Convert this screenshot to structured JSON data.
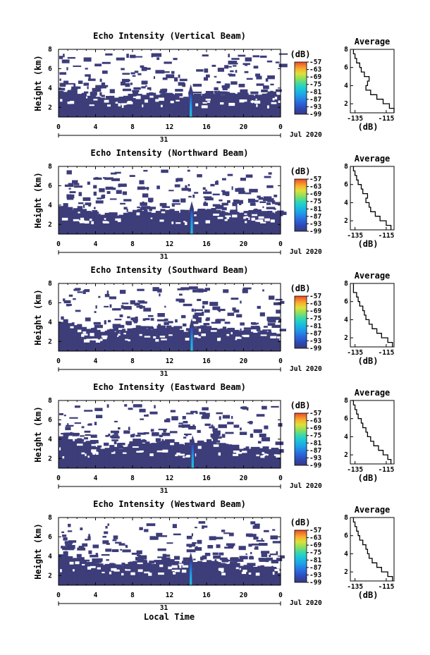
{
  "figure": {
    "xlabel": "Local Time",
    "date_label": "Jul 2020",
    "day_label": "31"
  },
  "chart_data": [
    {
      "type": "heatmap",
      "title": "Echo Intensity (Vertical Beam)",
      "xlabel": "Local Time",
      "ylabel": "Height (km)",
      "x_ticks": [
        "0",
        "4",
        "8",
        "12",
        "16",
        "20",
        "0"
      ],
      "y_ticks": [
        "2",
        "4",
        "6",
        "8"
      ],
      "xlim": [
        0,
        24
      ],
      "ylim": [
        1,
        8
      ],
      "colorbar": {
        "label": "(dB)",
        "ticks": [
          "-57",
          "-63",
          "-69",
          "-75",
          "-81",
          "-87",
          "-93",
          "-99"
        ],
        "range": [
          -99,
          -57
        ]
      },
      "echo_top_km": [
        3.7,
        3.6,
        3.8,
        3.9,
        3.4,
        3.5,
        3.2,
        3.3,
        3.1,
        3.0,
        2.9,
        3.2,
        3.0,
        3.1,
        3.2,
        3.4,
        3.6,
        3.4,
        3.3,
        3.5,
        3.2,
        3.3,
        3.4,
        3.2,
        3.3,
        3.2,
        3.0,
        3.1,
        3.0,
        3.3,
        3.2,
        3.4,
        3.6,
        3.4,
        3.5,
        3.3,
        3.4,
        3.5,
        3.4,
        3.3,
        3.5,
        3.3,
        3.2,
        3.3,
        3.4,
        3.5,
        3.4,
        3.3
      ],
      "spike_hour": 14.3,
      "average_profile": {
        "title": "Average",
        "xlabel": "(dB)",
        "x_ticks": [
          "-135",
          "-115"
        ],
        "xlim": [
          -138,
          -110
        ],
        "y_ticks": [
          "2",
          "4",
          "6",
          "8"
        ],
        "ylim": [
          1,
          8
        ],
        "height_km": [
          1.0,
          1.5,
          2.0,
          2.5,
          3.0,
          3.5,
          4.0,
          4.5,
          5.0,
          5.5,
          6.0,
          6.5,
          7.0,
          7.5,
          8.0
        ],
        "value_db": [
          -110,
          -113,
          -117,
          -121,
          -125,
          -128,
          -127,
          -126,
          -129,
          -131,
          -132,
          -134,
          -135,
          -136,
          -136
        ]
      }
    },
    {
      "type": "heatmap",
      "title": "Echo Intensity (Northward Beam)",
      "xlabel": "Local Time",
      "ylabel": "Height (km)",
      "x_ticks": [
        "0",
        "4",
        "8",
        "12",
        "16",
        "20",
        "0"
      ],
      "y_ticks": [
        "2",
        "4",
        "6",
        "8"
      ],
      "xlim": [
        0,
        24
      ],
      "ylim": [
        1,
        8
      ],
      "colorbar": {
        "label": "(dB)",
        "ticks": [
          "-57",
          "-63",
          "-69",
          "-75",
          "-81",
          "-87",
          "-93",
          "-99"
        ],
        "range": [
          -99,
          -57
        ]
      },
      "echo_top_km": [
        3.9,
        4.2,
        3.8,
        3.5,
        3.7,
        3.6,
        3.4,
        3.3,
        3.1,
        3.0,
        3.2,
        3.1,
        2.9,
        3.0,
        3.2,
        3.3,
        3.5,
        3.6,
        3.4,
        3.3,
        3.2,
        3.4,
        3.6,
        3.5,
        3.6,
        3.4,
        3.2,
        3.1,
        3.0,
        3.3,
        3.5,
        3.4,
        3.6,
        3.7,
        3.5,
        3.3,
        3.2,
        3.4,
        3.3,
        3.2,
        3.4,
        3.3,
        3.2,
        3.1,
        3.3,
        3.2,
        3.1,
        3.0
      ],
      "spike_hour": 14.4,
      "average_profile": {
        "title": "Average",
        "xlabel": "(dB)",
        "x_ticks": [
          "-135",
          "-115"
        ],
        "xlim": [
          -138,
          -110
        ],
        "y_ticks": [
          "2",
          "4",
          "6",
          "8"
        ],
        "ylim": [
          1,
          8
        ],
        "height_km": [
          1.0,
          1.5,
          2.0,
          2.5,
          3.0,
          3.5,
          4.0,
          4.5,
          5.0,
          5.5,
          6.0,
          6.5,
          7.0,
          7.5,
          8.0
        ],
        "value_db": [
          -112,
          -115,
          -119,
          -122,
          -125,
          -126,
          -128,
          -127,
          -130,
          -131,
          -133,
          -134,
          -135,
          -136,
          -136
        ]
      }
    },
    {
      "type": "heatmap",
      "title": "Echo Intensity (Southward Beam)",
      "xlabel": "Local Time",
      "ylabel": "Height (km)",
      "x_ticks": [
        "0",
        "4",
        "8",
        "12",
        "16",
        "20",
        "0"
      ],
      "y_ticks": [
        "2",
        "4",
        "6",
        "8"
      ],
      "xlim": [
        0,
        24
      ],
      "ylim": [
        1,
        8
      ],
      "colorbar": {
        "label": "(dB)",
        "ticks": [
          "-57",
          "-63",
          "-69",
          "-75",
          "-81",
          "-87",
          "-93",
          "-99"
        ],
        "range": [
          -99,
          -57
        ]
      },
      "echo_top_km": [
        4.0,
        4.3,
        3.9,
        3.6,
        3.8,
        3.5,
        3.3,
        3.4,
        3.2,
        3.0,
        3.1,
        3.3,
        3.0,
        2.9,
        3.1,
        3.3,
        3.4,
        3.6,
        3.5,
        3.3,
        3.2,
        3.3,
        3.5,
        3.4,
        3.5,
        3.3,
        3.2,
        3.0,
        3.1,
        3.4,
        3.6,
        3.5,
        3.6,
        3.4,
        3.3,
        3.2,
        3.3,
        3.4,
        3.2,
        3.1,
        3.2,
        3.0,
        2.9,
        3.0,
        3.1,
        3.0,
        2.9,
        2.8
      ],
      "spike_hour": 14.4,
      "average_profile": {
        "title": "Average",
        "xlabel": "(dB)",
        "x_ticks": [
          "-135",
          "-115"
        ],
        "xlim": [
          -138,
          -110
        ],
        "y_ticks": [
          "2",
          "4",
          "6",
          "8"
        ],
        "ylim": [
          1,
          8
        ],
        "height_km": [
          1.0,
          1.5,
          2.0,
          2.5,
          3.0,
          3.5,
          4.0,
          4.5,
          5.0,
          5.5,
          6.0,
          6.5,
          7.0,
          7.5,
          8.0
        ],
        "value_db": [
          -111,
          -114,
          -118,
          -121,
          -124,
          -126,
          -128,
          -129,
          -130,
          -132,
          -133,
          -134,
          -136,
          -136,
          -136
        ]
      }
    },
    {
      "type": "heatmap",
      "title": "Echo Intensity (Eastward Beam)",
      "xlabel": "Local Time",
      "ylabel": "Height (km)",
      "x_ticks": [
        "0",
        "4",
        "8",
        "12",
        "16",
        "20",
        "0"
      ],
      "y_ticks": [
        "2",
        "4",
        "6",
        "8"
      ],
      "xlim": [
        0,
        24
      ],
      "ylim": [
        1,
        8
      ],
      "colorbar": {
        "label": "(dB)",
        "ticks": [
          "-57",
          "-63",
          "-69",
          "-75",
          "-81",
          "-87",
          "-93",
          "-99"
        ],
        "range": [
          -99,
          -57
        ]
      },
      "echo_top_km": [
        4.3,
        4.6,
        4.0,
        3.8,
        4.1,
        3.7,
        3.5,
        3.3,
        3.2,
        3.0,
        3.1,
        3.4,
        3.2,
        3.0,
        3.2,
        3.5,
        3.6,
        3.7,
        3.5,
        3.4,
        3.3,
        3.6,
        3.8,
        3.9,
        4.0,
        3.7,
        3.5,
        3.4,
        3.3,
        3.6,
        3.8,
        3.7,
        4.0,
        3.8,
        3.6,
        3.4,
        3.3,
        3.4,
        3.2,
        3.0,
        3.1,
        3.0,
        2.9,
        3.0,
        2.9,
        2.8,
        2.9,
        2.8
      ],
      "spike_hour": 14.5,
      "average_profile": {
        "title": "Average",
        "xlabel": "(dB)",
        "x_ticks": [
          "-135",
          "-115"
        ],
        "xlim": [
          -138,
          -110
        ],
        "y_ticks": [
          "2",
          "4",
          "6",
          "8"
        ],
        "ylim": [
          1,
          8
        ],
        "height_km": [
          1.0,
          1.5,
          2.0,
          2.5,
          3.0,
          3.5,
          4.0,
          4.5,
          5.0,
          5.5,
          6.0,
          6.5,
          7.0,
          7.5,
          8.0
        ],
        "value_db": [
          -112,
          -114,
          -117,
          -120,
          -123,
          -125,
          -127,
          -128,
          -130,
          -131,
          -133,
          -134,
          -135,
          -136,
          -137
        ]
      }
    },
    {
      "type": "heatmap",
      "title": "Echo Intensity (Westward Beam)",
      "xlabel": "Local Time",
      "ylabel": "Height (km)",
      "x_ticks": [
        "0",
        "4",
        "8",
        "12",
        "16",
        "20",
        "0"
      ],
      "y_ticks": [
        "2",
        "4",
        "6",
        "8"
      ],
      "xlim": [
        0,
        24
      ],
      "ylim": [
        1,
        8
      ],
      "colorbar": {
        "label": "(dB)",
        "ticks": [
          "-57",
          "-63",
          "-69",
          "-75",
          "-81",
          "-87",
          "-93",
          "-99"
        ],
        "range": [
          -99,
          -57
        ]
      },
      "echo_top_km": [
        4.2,
        4.5,
        4.0,
        3.7,
        3.9,
        3.6,
        3.4,
        3.3,
        3.2,
        3.1,
        3.2,
        3.3,
        3.1,
        3.0,
        3.2,
        3.4,
        3.5,
        3.6,
        3.4,
        3.3,
        3.2,
        3.4,
        3.6,
        3.5,
        3.7,
        3.5,
        3.3,
        3.2,
        3.1,
        3.4,
        3.5,
        3.4,
        3.6,
        3.5,
        3.4,
        3.3,
        3.2,
        3.3,
        3.1,
        3.0,
        3.1,
        3.0,
        2.9,
        3.0,
        2.9,
        2.8,
        2.9,
        2.7
      ],
      "spike_hour": 14.3,
      "average_profile": {
        "title": "Average",
        "xlabel": "(dB)",
        "x_ticks": [
          "-135",
          "-115"
        ],
        "xlim": [
          -138,
          -110
        ],
        "y_ticks": [
          "2",
          "4",
          "6",
          "8"
        ],
        "ylim": [
          1,
          8
        ],
        "height_km": [
          1.0,
          1.5,
          2.0,
          2.5,
          3.0,
          3.5,
          4.0,
          4.5,
          5.0,
          5.5,
          6.0,
          6.5,
          7.0,
          7.5,
          8.0
        ],
        "value_db": [
          -111,
          -114,
          -118,
          -121,
          -124,
          -126,
          -127,
          -128,
          -130,
          -132,
          -133,
          -134,
          -135,
          -136,
          -136
        ]
      }
    }
  ],
  "colors": {
    "background_echo": "#3d3d7a",
    "colorbar": [
      "#3a3a78",
      "#2c4bbd",
      "#2a6fe0",
      "#1ea0e8",
      "#19c6d8",
      "#3bd9a8",
      "#8fe05a",
      "#e0e03a",
      "#f6b02e",
      "#f47a2a",
      "#e94a2a"
    ]
  }
}
